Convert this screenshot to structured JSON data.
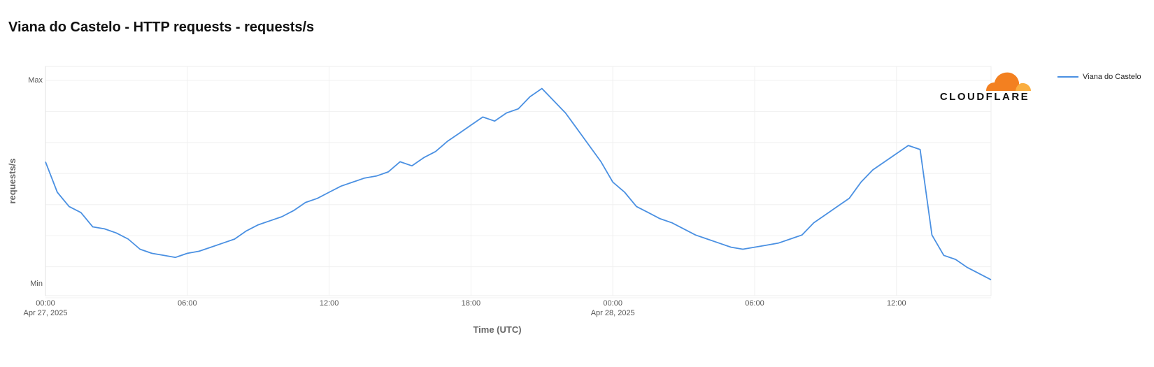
{
  "page": {
    "title": "Viana do Castelo - HTTP requests - requests/s"
  },
  "brand": {
    "name": "CLOUDFLARE",
    "logo_icon": "cloudflare-cloud-icon",
    "colors": {
      "cloud_dark": "#f38020",
      "cloud_light": "#faae40"
    }
  },
  "chart_data": {
    "type": "line",
    "title": "Viana do Castelo - HTTP requests - requests/s",
    "xlabel": "Time (UTC)",
    "ylabel": "requests/s",
    "y_ticks": [
      "Max",
      "Min"
    ],
    "ylim": [
      0,
      100
    ],
    "x_range_hours": [
      0,
      40
    ],
    "x_ticks": [
      {
        "hour": 0,
        "label": "00:00",
        "sublabel": "Apr 27, 2025"
      },
      {
        "hour": 6,
        "label": "06:00",
        "sublabel": ""
      },
      {
        "hour": 12,
        "label": "12:00",
        "sublabel": ""
      },
      {
        "hour": 18,
        "label": "18:00",
        "sublabel": ""
      },
      {
        "hour": 24,
        "label": "00:00",
        "sublabel": "Apr 28, 2025"
      },
      {
        "hour": 30,
        "label": "06:00",
        "sublabel": ""
      },
      {
        "hour": 36,
        "label": "12:00",
        "sublabel": ""
      }
    ],
    "grid": true,
    "legend_position": "top-right",
    "series": [
      {
        "name": "Viana do Castelo",
        "color": "#4a90e2",
        "x": [
          0,
          0.5,
          1,
          1.5,
          2,
          2.5,
          3,
          3.5,
          4,
          4.5,
          5,
          5.5,
          6,
          6.5,
          7,
          7.5,
          8,
          8.5,
          9,
          9.5,
          10,
          10.5,
          11,
          11.5,
          12,
          12.5,
          13,
          13.5,
          14,
          14.5,
          15,
          15.5,
          16,
          16.5,
          17,
          17.5,
          18,
          18.5,
          19,
          19.5,
          20,
          20.5,
          21,
          21.5,
          22,
          22.5,
          23,
          23.5,
          24,
          24.5,
          25,
          25.5,
          26,
          26.5,
          27,
          27.5,
          28,
          28.5,
          29,
          29.5,
          30,
          30.5,
          31,
          31.5,
          32,
          32.5,
          33,
          33.5,
          34,
          34.5,
          35,
          35.5,
          36,
          36.5,
          37,
          37.5,
          38,
          38.5,
          39,
          39.5,
          40
        ],
        "values": [
          60,
          45,
          38,
          35,
          28,
          27,
          25,
          22,
          17,
          15,
          14,
          13,
          15,
          16,
          18,
          20,
          22,
          26,
          29,
          31,
          33,
          36,
          40,
          42,
          45,
          48,
          50,
          52,
          53,
          55,
          60,
          58,
          62,
          65,
          70,
          74,
          78,
          82,
          80,
          84,
          86,
          92,
          96,
          90,
          84,
          76,
          68,
          60,
          50,
          45,
          38,
          35,
          32,
          30,
          27,
          24,
          22,
          20,
          18,
          17,
          18,
          19,
          20,
          22,
          24,
          30,
          34,
          38,
          42,
          50,
          56,
          60,
          64,
          68,
          66,
          24,
          14,
          12,
          8,
          5,
          2
        ]
      }
    ]
  }
}
